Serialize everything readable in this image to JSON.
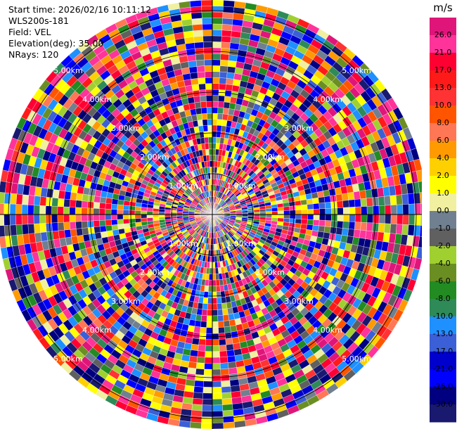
{
  "header": {
    "start_time": "Start time: 2026/02/16 10:11:12",
    "station": "WLS200s-181",
    "field": "Field: VEL",
    "elevation": "Elevation(deg): 35.00",
    "nrays": "NRays: 120"
  },
  "range_rings": [
    "1.00km",
    "2.00km",
    "3.00km",
    "4.00km",
    "5.00km"
  ],
  "colorbar": {
    "unit": "m/s",
    "ticks": [
      "26.0",
      "21.0",
      "17.0",
      "13.0",
      "10.0",
      "8.0",
      "6.0",
      "4.0",
      "2.0",
      "1.0",
      "0.0",
      "-1.0",
      "-2.0",
      "-4.0",
      "-6.0",
      "-8.0",
      "-10.0",
      "-13.0",
      "-17.0",
      "-21.0",
      "-26.0",
      "-30.0"
    ],
    "colors": [
      "#e0157a",
      "#ff3399",
      "#ff0033",
      "#ff1a1a",
      "#ff3333",
      "#ff5500",
      "#ff7755",
      "#ff9a00",
      "#ffd000",
      "#ffff00",
      "#f0f0a0",
      "#708090",
      "#606060",
      "#a0d030",
      "#6b8e23",
      "#228b22",
      "#2e8b57",
      "#1e90ff",
      "#3b5fd6",
      "#0000cd",
      "#0000ff",
      "#000080",
      "#191970"
    ]
  }
}
